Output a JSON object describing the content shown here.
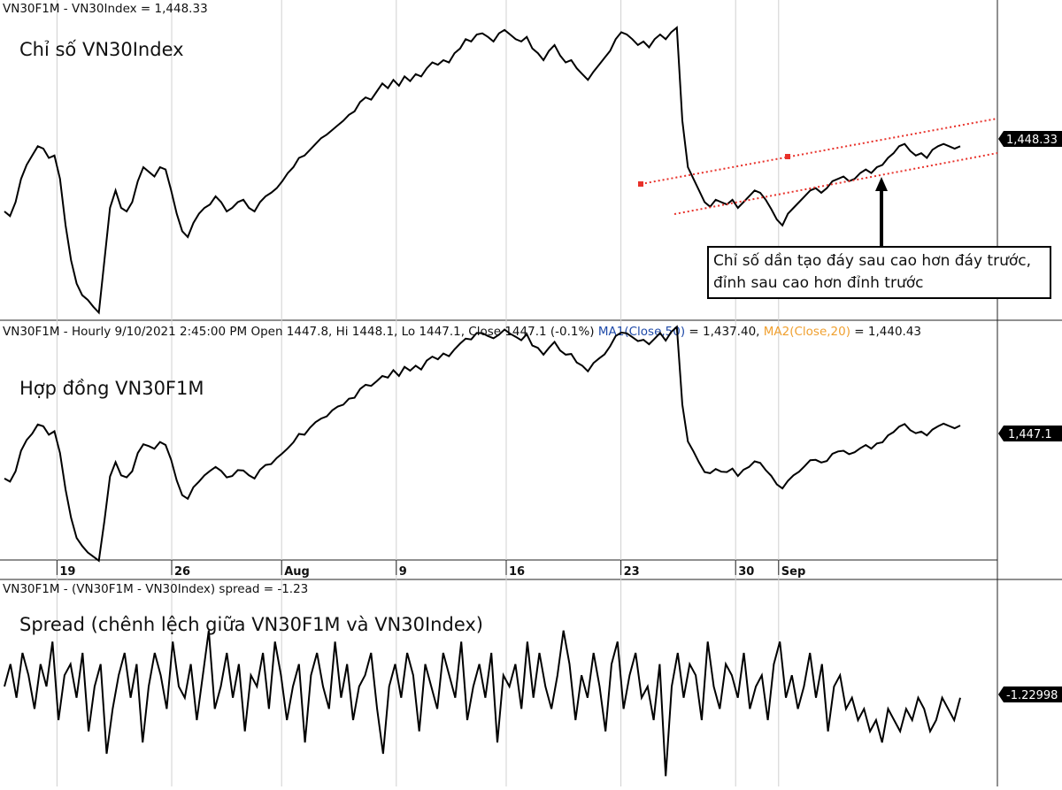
{
  "chart_data": [
    {
      "type": "line",
      "header": "VN30F1M - VN30Index = 1,448.33",
      "title": "Chỉ số VN30Index",
      "last_value_label": "1,448.33",
      "ylim": [
        1300,
        1560
      ],
      "colors": {
        "line": "#000000",
        "trend": "#e8312a"
      },
      "series": [
        {
          "values": [
            1392,
            1388,
            1400,
            1420,
            1432,
            1440,
            1448,
            1446,
            1438,
            1440,
            1420,
            1380,
            1350,
            1330,
            1320,
            1316,
            1310,
            1305,
            1350,
            1395,
            1410,
            1395,
            1392,
            1400,
            1418,
            1430,
            1426,
            1422,
            1430,
            1428,
            1410,
            1390,
            1375,
            1370,
            1382,
            1390,
            1395,
            1398,
            1405,
            1400,
            1392,
            1395,
            1400,
            1402,
            1395,
            1392,
            1400,
            1405,
            1408,
            1412,
            1418,
            1425,
            1430,
            1438,
            1440,
            1445,
            1450,
            1455,
            1458,
            1462,
            1466,
            1470,
            1475,
            1478,
            1486,
            1490,
            1488,
            1495,
            1502,
            1498,
            1505,
            1500,
            1508,
            1504,
            1510,
            1508,
            1515,
            1520,
            1518,
            1522,
            1520,
            1528,
            1532,
            1540,
            1538,
            1544,
            1545,
            1542,
            1538,
            1545,
            1548,
            1544,
            1540,
            1538,
            1542,
            1532,
            1528,
            1522,
            1530,
            1535,
            1526,
            1520,
            1522,
            1515,
            1510,
            1505,
            1512,
            1518,
            1524,
            1530,
            1540,
            1546,
            1544,
            1540,
            1535,
            1538,
            1533,
            1540,
            1544,
            1540,
            1546,
            1550,
            1470,
            1430,
            1420,
            1410,
            1400,
            1396,
            1402,
            1400,
            1398,
            1402,
            1395,
            1400,
            1405,
            1410,
            1408,
            1402,
            1394,
            1385,
            1380,
            1390,
            1395,
            1400,
            1405,
            1410,
            1412,
            1408,
            1412,
            1418,
            1420,
            1422,
            1418,
            1420,
            1425,
            1428,
            1425,
            1430,
            1432,
            1438,
            1442,
            1448,
            1450,
            1444,
            1440,
            1442,
            1438,
            1445,
            1448,
            1450,
            1448,
            1446,
            1448
          ]
        }
      ],
      "annotation": {
        "lines": [
          "Chỉ số dần tạo đáy sau cao hơn đáy trước,",
          "đỉnh sau cao hơn đỉnh trước"
        ]
      }
    },
    {
      "type": "line",
      "header_parts": [
        {
          "text": "VN30F1M - Hourly 9/10/2021 2:45:00 PM Open 1447.8, Hi 1448.1, Lo 1447.1, Close 1447.1 (-0.1%) ",
          "color": "#111111"
        },
        {
          "text": "MA1(Close,50)",
          "color": "#1f4aa8"
        },
        {
          "text": " = 1,437.40, ",
          "color": "#111111"
        },
        {
          "text": "MA2(Close,20)",
          "color": "#f0a030"
        },
        {
          "text": " = 1,440.43",
          "color": "#111111"
        }
      ],
      "title": "Hợp đồng VN30F1M",
      "last_value_label": "1,447.1",
      "ylim": [
        1300,
        1560
      ],
      "x_ticks": [
        {
          "label": "19",
          "pos": 0.055
        },
        {
          "label": "26",
          "pos": 0.175
        },
        {
          "label": "Aug",
          "pos": 0.29
        },
        {
          "label": "9",
          "pos": 0.41
        },
        {
          "label": "16",
          "pos": 0.525
        },
        {
          "label": "23",
          "pos": 0.645
        },
        {
          "label": "30",
          "pos": 0.765
        },
        {
          "label": "Sep",
          "pos": 0.81
        }
      ]
    },
    {
      "type": "line",
      "header": "VN30F1M - (VN30F1M - VN30Index) spread = -1.23",
      "title": "Spread (chênh lệch giữa VN30F1M và VN30Index)",
      "last_value_label": "-1.22998",
      "ylim": [
        -9,
        6
      ],
      "series": [
        {
          "values": [
            0,
            2,
            -1,
            3,
            1,
            -2,
            2,
            0,
            4,
            -3,
            1,
            2,
            -1,
            3,
            -4,
            0,
            2,
            -6,
            -2,
            1,
            3,
            -1,
            2,
            -5,
            0,
            3,
            1,
            -2,
            4,
            0,
            -1,
            2,
            -3,
            1,
            5,
            -2,
            0,
            3,
            -1,
            2,
            -4,
            1,
            0,
            3,
            -2,
            4,
            1,
            -3,
            0,
            2,
            -5,
            1,
            3,
            0,
            -2,
            4,
            -1,
            2,
            -3,
            0,
            1,
            3,
            -2,
            -6,
            0,
            2,
            -1,
            3,
            1,
            -4,
            2,
            0,
            -2,
            3,
            1,
            -1,
            4,
            -3,
            0,
            2,
            -1,
            3,
            -5,
            1,
            0,
            2,
            -2,
            4,
            -1,
            3,
            0,
            -2,
            1,
            5,
            2,
            -3,
            1,
            -1,
            3,
            0,
            -4,
            2,
            4,
            -2,
            1,
            3,
            -1,
            0,
            -3,
            2,
            -8,
            0,
            3,
            -1,
            2,
            1,
            -3,
            4,
            0,
            -2,
            2,
            1,
            -1,
            3,
            -2,
            0,
            1,
            -3,
            2,
            4,
            -1,
            1,
            -2,
            0,
            3,
            -1,
            2,
            -4,
            0,
            1,
            -2,
            -1,
            -3,
            -2,
            -4,
            -3,
            -5,
            -2,
            -3,
            -4,
            -2,
            -3,
            -1,
            -2,
            -4,
            -3,
            -1,
            -2,
            -3,
            -1
          ]
        }
      ]
    }
  ]
}
